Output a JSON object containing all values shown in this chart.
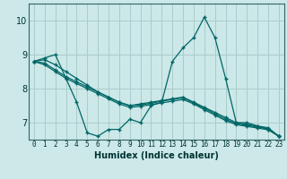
{
  "title": "",
  "xlabel": "Humidex (Indice chaleur)",
  "background_color": "#cce8e8",
  "grid_color": "#aacccc",
  "line_color": "#006666",
  "xlim": [
    -0.5,
    23.5
  ],
  "ylim": [
    6.5,
    10.5
  ],
  "yticks": [
    7,
    8,
    9,
    10
  ],
  "xticks": [
    0,
    1,
    2,
    3,
    4,
    5,
    6,
    7,
    8,
    9,
    10,
    11,
    12,
    13,
    14,
    15,
    16,
    17,
    18,
    19,
    20,
    21,
    22,
    23
  ],
  "series": [
    [
      8.8,
      8.9,
      9.0,
      8.3,
      7.6,
      6.7,
      6.6,
      6.8,
      6.8,
      7.1,
      7.0,
      7.5,
      7.6,
      8.8,
      9.2,
      9.5,
      10.1,
      9.5,
      8.3,
      7.0,
      7.0,
      6.9,
      6.8,
      6.6
    ],
    [
      8.8,
      8.85,
      8.7,
      8.5,
      8.3,
      8.1,
      7.9,
      7.75,
      7.6,
      7.5,
      7.55,
      7.6,
      7.65,
      7.7,
      7.75,
      7.6,
      7.45,
      7.3,
      7.15,
      7.0,
      6.95,
      6.9,
      6.85,
      6.6
    ],
    [
      8.8,
      8.75,
      8.55,
      8.35,
      8.2,
      8.05,
      7.9,
      7.75,
      7.6,
      7.5,
      7.52,
      7.57,
      7.63,
      7.68,
      7.73,
      7.58,
      7.42,
      7.26,
      7.1,
      6.97,
      6.92,
      6.87,
      6.82,
      6.6
    ],
    [
      8.8,
      8.7,
      8.5,
      8.3,
      8.15,
      8.0,
      7.85,
      7.7,
      7.55,
      7.45,
      7.48,
      7.53,
      7.58,
      7.63,
      7.68,
      7.55,
      7.38,
      7.22,
      7.06,
      6.94,
      6.89,
      6.84,
      6.79,
      6.6
    ]
  ]
}
